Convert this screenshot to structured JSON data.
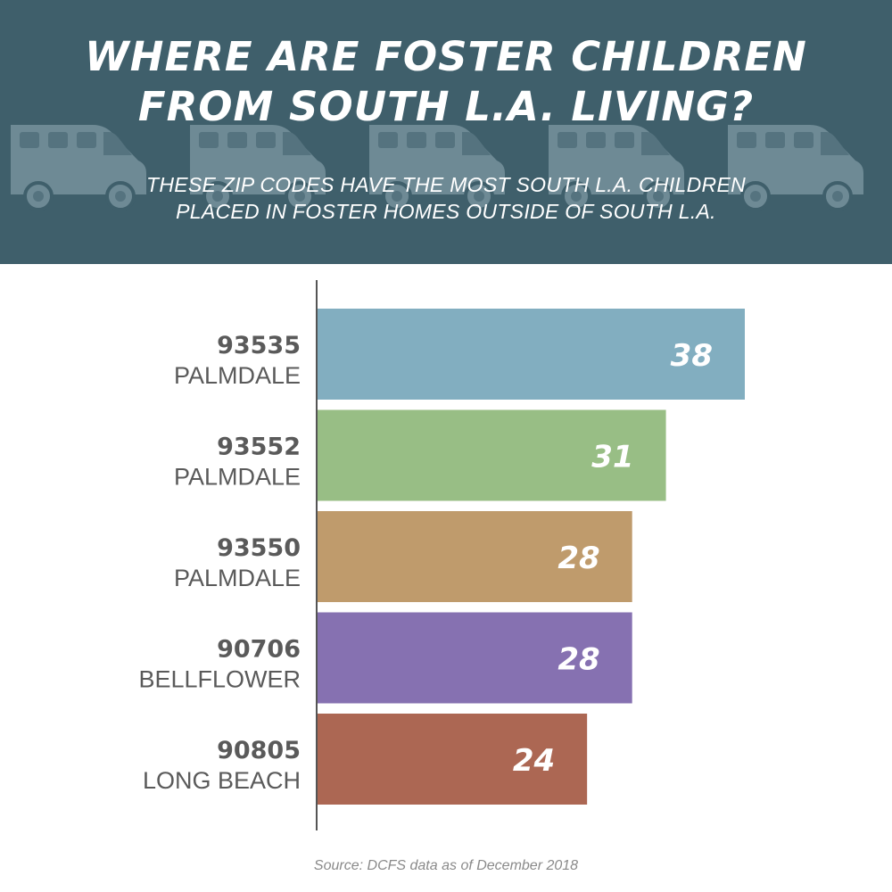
{
  "header": {
    "title_line1": "WHERE ARE FOSTER CHILDREN",
    "title_line2": "FROM SOUTH L.A. LIVING?",
    "subtitle_line1": "THESE ZIP CODES HAVE THE MOST SOUTH L.A. CHILDREN",
    "subtitle_line2": "PLACED IN FOSTER HOMES OUTSIDE OF SOUTH L.A.",
    "decoration_icon": "van-icon"
  },
  "colors": {
    "header_bg": "#3f5f6b",
    "label_text": "#5a5a5a",
    "axis": "#555555"
  },
  "chart_data": {
    "type": "bar",
    "orientation": "horizontal",
    "title": "WHERE ARE FOSTER CHILDREN FROM SOUTH L.A. LIVING?",
    "subtitle": "THESE ZIP CODES HAVE THE MOST SOUTH L.A. CHILDREN PLACED IN FOSTER HOMES OUTSIDE OF SOUTH L.A.",
    "categories": [
      {
        "zip": "93535",
        "city": "PALMDALE"
      },
      {
        "zip": "93552",
        "city": "PALMDALE"
      },
      {
        "zip": "93550",
        "city": "PALMDALE"
      },
      {
        "zip": "90706",
        "city": "BELLFLOWER"
      },
      {
        "zip": "90805",
        "city": "LONG BEACH"
      }
    ],
    "values": [
      38,
      31,
      28,
      28,
      24
    ],
    "bar_colors": [
      "#82aec0",
      "#98be85",
      "#bf9b6c",
      "#8671b1",
      "#ac6753"
    ],
    "data_labels": [
      "38",
      "31",
      "28",
      "28",
      "24"
    ],
    "xlim": [
      0,
      38
    ],
    "grid": false,
    "legend": "none",
    "source": "Source: DCFS data as of December 2018"
  }
}
